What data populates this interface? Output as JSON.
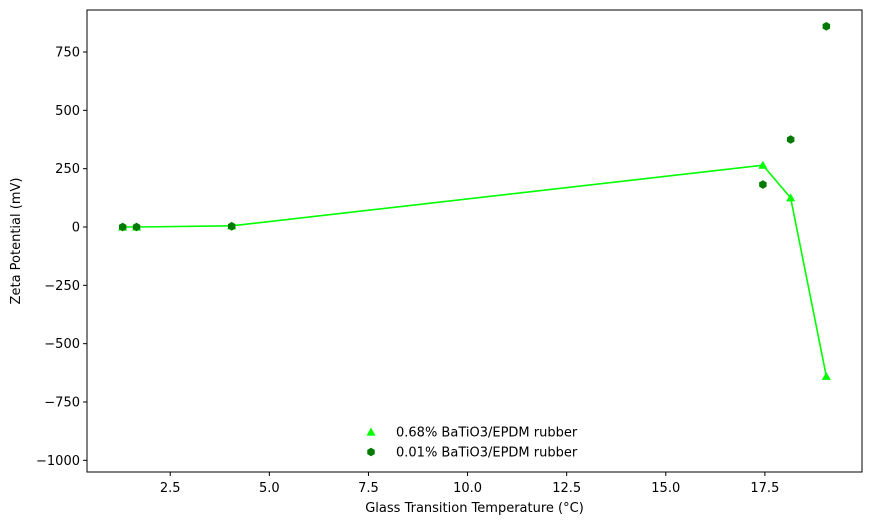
{
  "chart_data": {
    "type": "scatter",
    "title": "",
    "xlabel": "Glass Transition Temperature (°C)",
    "ylabel": "Zeta Potential (mV)",
    "xlim": [
      0.4,
      19.95
    ],
    "ylim": [
      -1050,
      930
    ],
    "xticks": [
      2.5,
      5.0,
      7.5,
      10.0,
      12.5,
      15.0,
      17.5
    ],
    "xtick_labels": [
      "2.5",
      "5.0",
      "7.5",
      "10.0",
      "12.5",
      "15.0",
      "17.5"
    ],
    "yticks": [
      -1000,
      -750,
      -500,
      -250,
      0,
      250,
      500,
      750
    ],
    "ytick_labels": [
      "−1000",
      "−750",
      "−500",
      "−250",
      "0",
      "250",
      "500",
      "750"
    ],
    "grid": false,
    "legend_position": "lower-center",
    "series": [
      {
        "name": "0.68% BaTiO3/EPDM rubber",
        "marker": "triangle",
        "color": "#00ff00",
        "connected": true,
        "x": [
          1.3,
          1.65,
          4.05,
          17.45,
          18.15,
          19.05
        ],
        "y": [
          0,
          0,
          5,
          265,
          125,
          -640
        ]
      },
      {
        "name": "0.01% BaTiO3/EPDM rubber",
        "marker": "hexagon",
        "color": "#007a00",
        "connected": false,
        "x": [
          1.3,
          1.65,
          4.05,
          17.45,
          18.15,
          19.05
        ],
        "y": [
          0,
          0,
          3,
          182,
          375,
          860
        ]
      }
    ]
  }
}
